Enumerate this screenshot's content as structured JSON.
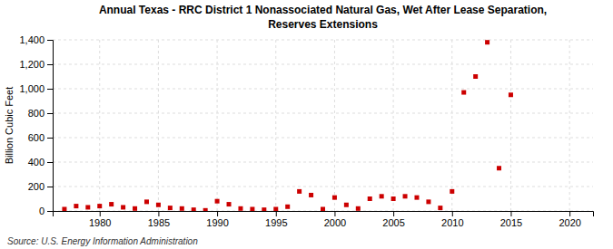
{
  "chart_data": {
    "type": "scatter",
    "title": "Annual Texas - RRC District 1 Nonassociated Natural Gas, Wet After Lease Separation,\nReserves Extensions",
    "y_label": "Billion Cubic Feet",
    "source": "Source: U.S. Energy Information Administration",
    "x": [
      1977,
      1978,
      1979,
      1980,
      1981,
      1982,
      1983,
      1984,
      1985,
      1986,
      1987,
      1988,
      1989,
      1990,
      1991,
      1992,
      1993,
      1994,
      1995,
      1996,
      1997,
      1998,
      1999,
      2000,
      2001,
      2002,
      2003,
      2004,
      2005,
      2006,
      2007,
      2008,
      2009,
      2010,
      2011,
      2012,
      2013,
      2014,
      2015
    ],
    "values": [
      15,
      40,
      30,
      40,
      55,
      30,
      20,
      75,
      50,
      25,
      20,
      10,
      5,
      80,
      55,
      20,
      15,
      10,
      15,
      35,
      160,
      130,
      15,
      110,
      50,
      20,
      100,
      120,
      100,
      120,
      110,
      75,
      25,
      160,
      970,
      1100,
      1380,
      350,
      950
    ],
    "color": "#cc0000",
    "marker": "square",
    "xlim": [
      1976,
      2022
    ],
    "xticks": [
      1980,
      1985,
      1990,
      1995,
      2000,
      2005,
      2010,
      2015,
      2020
    ],
    "ylim": [
      0,
      1400
    ],
    "yticks": [
      0,
      200,
      400,
      600,
      800,
      {
        "value": 1000,
        "label": "1,000"
      },
      {
        "value": 1200,
        "label": "1,200"
      },
      {
        "value": 1400,
        "label": "1,400"
      }
    ],
    "grid": true
  }
}
